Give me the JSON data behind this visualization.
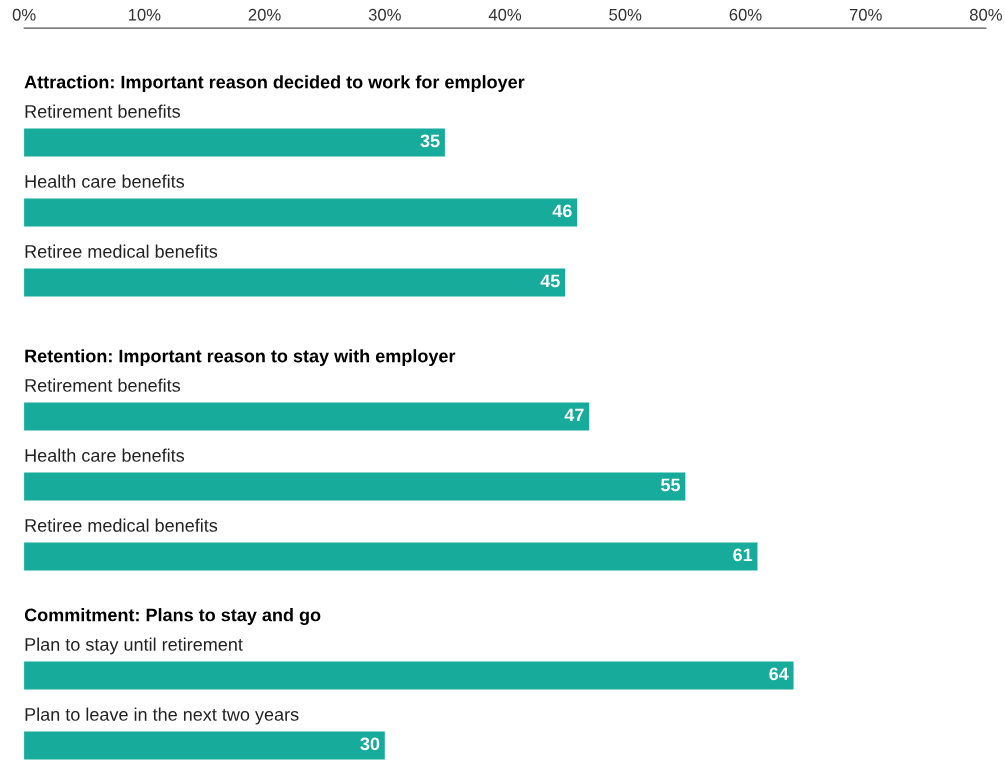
{
  "chart_data": [
    {
      "type": "bar",
      "orientation": "horizontal",
      "title": "Attraction: Important reason decided to work for employer",
      "categories": [
        "Retirement benefits",
        "Health care benefits",
        "Retiree medical benefits"
      ],
      "values": [
        35,
        46,
        45
      ],
      "color": "#17ab9c",
      "data_labels": true,
      "xlim": [
        0,
        80
      ],
      "xticks": [
        {
          "value": 0,
          "label": "0%"
        },
        {
          "value": 10,
          "label": "10%"
        },
        {
          "value": 20,
          "label": "20%"
        },
        {
          "value": 30,
          "label": "30%"
        },
        {
          "value": 40,
          "label": "40%"
        },
        {
          "value": 50,
          "label": "50%"
        },
        {
          "value": 60,
          "label": "60%"
        },
        {
          "value": 70,
          "label": "70%"
        },
        {
          "value": 80,
          "label": "80%"
        }
      ],
      "tick_labels": "x",
      "grid": false,
      "legend": false
    },
    {
      "type": "bar",
      "orientation": "horizontal",
      "title": "Retention: Important reason to stay with employer",
      "categories": [
        "Retirement benefits",
        "Health care benefits",
        "Retiree medical benefits"
      ],
      "values": [
        47,
        55,
        61
      ],
      "color": "#17ab9c",
      "data_labels": true,
      "xlim": [
        0,
        80
      ],
      "tick_labels": false,
      "grid": false,
      "legend": false
    },
    {
      "type": "bar",
      "orientation": "horizontal",
      "title": "Commitment: Plans to stay and go",
      "categories": [
        "Plan to stay until retirement",
        "Plan to leave in the next two years"
      ],
      "values": [
        64,
        30
      ],
      "color": "#17ab9c",
      "data_labels": true,
      "xlim": [
        0,
        80
      ],
      "tick_labels": false,
      "grid": false,
      "legend": false
    }
  ]
}
